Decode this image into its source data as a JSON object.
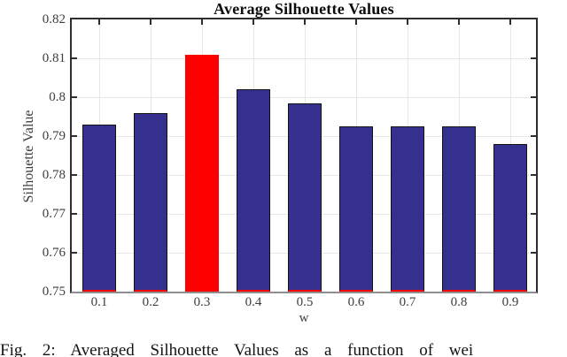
{
  "figure": {
    "caption": "Fig. 2: Averaged Silhouette Values as a function of wei"
  },
  "chart_data": {
    "type": "bar",
    "title": "Average Silhouette Values",
    "xlabel": "w",
    "ylabel": "Silhouette Value",
    "categories": [
      "0.1",
      "0.2",
      "0.3",
      "0.4",
      "0.5",
      "0.6",
      "0.7",
      "0.8",
      "0.9"
    ],
    "values": [
      0.793,
      0.796,
      0.811,
      0.802,
      0.7985,
      0.7925,
      0.7925,
      0.7925,
      0.788
    ],
    "highlight_index": 2,
    "ylim": [
      0.75,
      0.82
    ],
    "yticks": [
      0.82,
      0.81,
      0.8,
      0.79,
      0.78,
      0.77,
      0.76,
      0.75
    ],
    "ytick_labels": [
      "0.82",
      "0.81",
      "0.8",
      "0.79",
      "0.78",
      "0.77",
      "0.76",
      "0.75"
    ],
    "grid": true,
    "legend_position": "none",
    "colors": {
      "bar": "#352f8d",
      "bar_edge": "#141414",
      "highlight": "#ff0000",
      "baseline_accent": "#ff0000",
      "grid": "#e7e7e7",
      "axis": "#2e2e2e",
      "axis_bottom": "#8f8f8f",
      "tick_label": "#3e3e3e"
    }
  }
}
